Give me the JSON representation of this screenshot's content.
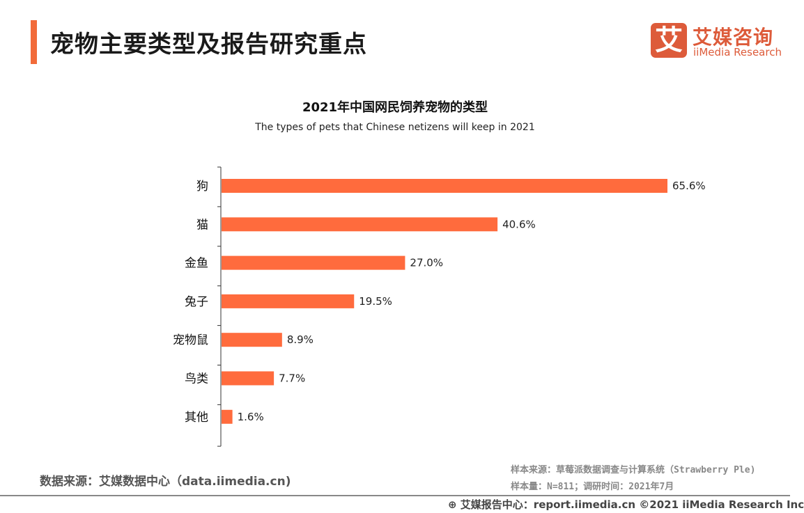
{
  "header": {
    "title": "宠物主要类型及报告研究重点",
    "accent_color": "#f26b3a"
  },
  "logo": {
    "glyph": "艾",
    "cn": "艾媒咨询",
    "en": "iiMedia Research",
    "color": "#dd5b3a"
  },
  "chart_data": {
    "type": "bar",
    "orientation": "horizontal",
    "title": "2021年中国网民饲养宠物的类型",
    "subtitle": "The types of pets that Chinese netizens will keep in 2021",
    "categories": [
      "狗",
      "猫",
      "金鱼",
      "兔子",
      "宠物鼠",
      "鸟类",
      "其他"
    ],
    "values": [
      65.6,
      40.6,
      27.0,
      19.5,
      8.9,
      7.7,
      1.6
    ],
    "labels": [
      "65.6%",
      "40.6%",
      "27.0%",
      "19.5%",
      "8.9%",
      "7.7%",
      "1.6%"
    ],
    "unit": "%",
    "bar_color": "#ff6b3d",
    "grid": false
  },
  "footer": {
    "source": "数据来源：艾媒数据中心（data.iimedia.cn)",
    "sample_source": "样本来源：草莓派数据调查与计算系统（Strawberry Ple)",
    "sample_size": "样本量：N=811；调研时间：2021年7月",
    "copyright": "艾媒报告中心：report.iimedia.cn ©2021  iiMedia Research  Inc"
  }
}
